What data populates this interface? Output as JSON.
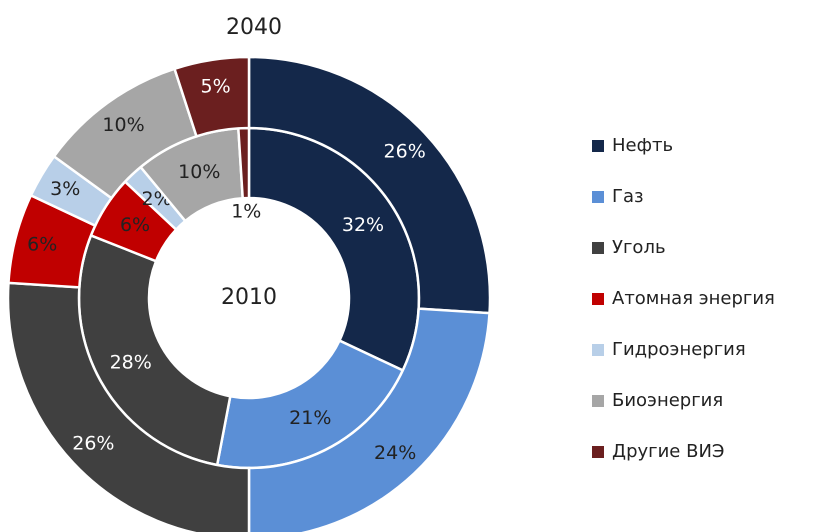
{
  "chart_data": {
    "type": "donut",
    "categories": [
      "Нефть",
      "Газ",
      "Уголь",
      "Атомная энергия",
      "Гидроэнергия",
      "Биоэнергия",
      "Другие ВИЭ"
    ],
    "colors": [
      "#14284a",
      "#5b8fd6",
      "#404040",
      "#c00000",
      "#b8cfe8",
      "#a6a6a6",
      "#6b1f1f"
    ],
    "series": [
      {
        "name": "2010",
        "values": [
          32,
          21,
          28,
          6,
          2,
          10,
          1
        ],
        "value_labels": [
          "32%",
          "21%",
          "28%",
          "6%",
          "2%",
          "10%",
          "1%"
        ]
      },
      {
        "name": "2040",
        "values": [
          26,
          24,
          26,
          6,
          3,
          10,
          5
        ],
        "value_labels": [
          "26%",
          "24%",
          "26%",
          "6%",
          "3%",
          "10%",
          "5%"
        ]
      }
    ]
  }
}
